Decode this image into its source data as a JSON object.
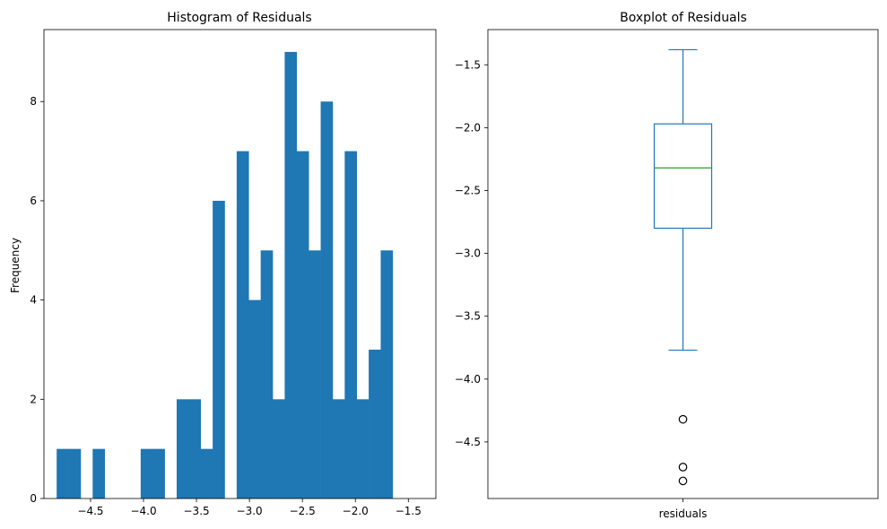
{
  "chart_data": [
    {
      "type": "bar",
      "subtype": "histogram",
      "title": "Histogram of Residuals",
      "xlabel": "",
      "ylabel": "Frequency",
      "xlim": [
        -4.94,
        -1.24
      ],
      "ylim": [
        0,
        9.45
      ],
      "xticks": [
        -4.5,
        -4.0,
        -3.5,
        -3.0,
        -2.5,
        -2.0,
        -1.5
      ],
      "xtick_labels": [
        "−4.5",
        "−4.0",
        "−3.5",
        "−3.0",
        "−2.5",
        "−2.0",
        "−1.5"
      ],
      "yticks": [
        0,
        2,
        4,
        6,
        8
      ],
      "ytick_labels": [
        "0",
        "2",
        "4",
        "6",
        "8"
      ],
      "bin_start": -4.82,
      "bin_width": 0.1133,
      "values": [
        1,
        1,
        0,
        1,
        0,
        0,
        0,
        1,
        1,
        0,
        2,
        2,
        1,
        6,
        0,
        7,
        4,
        5,
        2,
        9,
        7,
        5,
        8,
        2,
        7,
        2,
        3,
        5
      ],
      "color": "#1f77b4",
      "grid": false
    },
    {
      "type": "boxplot",
      "title": "Boxplot of Residuals",
      "xlabel": "",
      "ylabel": "",
      "categories": [
        "residuals"
      ],
      "ylim": [
        -4.95,
        -1.22
      ],
      "yticks": [
        -4.5,
        -4.0,
        -3.5,
        -3.0,
        -2.5,
        -2.0,
        -1.5
      ],
      "ytick_labels": [
        "−4.5",
        "−4.0",
        "−3.5",
        "−3.0",
        "−2.5",
        "−2.0",
        "−1.5"
      ],
      "whisker_low": -3.77,
      "q1": -2.8,
      "median": -2.32,
      "q3": -1.97,
      "whisker_high": -1.38,
      "outliers": [
        -4.32,
        -4.7,
        -4.81
      ],
      "box_color": "#1f77b4",
      "median_color": "#2ca02c",
      "grid": false
    }
  ]
}
